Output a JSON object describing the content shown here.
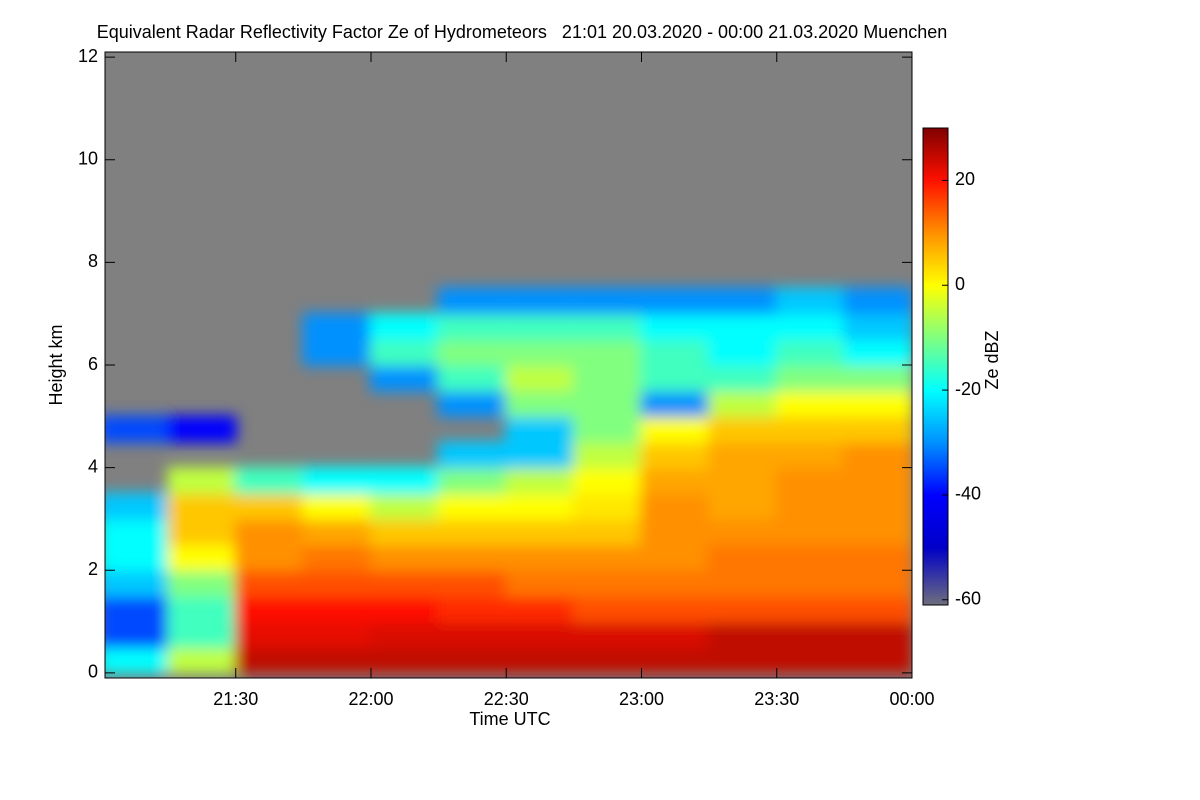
{
  "chart_data": {
    "type": "heatmap",
    "title": "Equivalent Radar Reflectivity Factor Ze of Hydrometeors   21:01 20.03.2020 - 00:00 21.03.2020 Muenchen",
    "x_label": "Time UTC",
    "y_label": "Height km",
    "colorbar_label": "Ze dBZ",
    "background_color": "#808080",
    "x": [
      21.125,
      21.375,
      21.625,
      21.875,
      22.125,
      22.375,
      22.625,
      22.875,
      23.125,
      23.375,
      23.625,
      23.875
    ],
    "y": [
      0.25,
      0.75,
      1.25,
      1.75,
      2.25,
      2.75,
      3.25,
      3.75,
      4.25,
      4.75,
      5.25,
      5.75,
      6.25,
      6.75,
      7.25,
      7.75
    ],
    "z": [
      [
        -20,
        -35,
        -35,
        -25,
        -20,
        -20,
        -25,
        null,
        null,
        -35,
        null,
        null,
        null,
        null,
        null,
        null
      ],
      [
        -5,
        -15,
        -15,
        -10,
        0,
        5,
        5,
        -5,
        null,
        -40,
        null,
        null,
        null,
        null,
        null,
        null
      ],
      [
        25,
        22,
        20,
        15,
        10,
        10,
        5,
        -15,
        null,
        null,
        null,
        null,
        null,
        null,
        null,
        null
      ],
      [
        25,
        22,
        20,
        15,
        12,
        8,
        0,
        -20,
        null,
        null,
        null,
        null,
        -30,
        -30,
        null,
        null
      ],
      [
        25,
        23,
        20,
        15,
        10,
        5,
        -5,
        -20,
        null,
        null,
        null,
        -30,
        -15,
        -20,
        null,
        null
      ],
      [
        25,
        23,
        18,
        15,
        10,
        5,
        0,
        -10,
        -25,
        null,
        -30,
        -15,
        -10,
        -15,
        -30,
        null
      ],
      [
        25,
        23,
        18,
        12,
        10,
        5,
        0,
        -5,
        -25,
        -25,
        -10,
        -5,
        -10,
        -15,
        -30,
        null
      ],
      [
        25,
        23,
        15,
        12,
        10,
        5,
        2,
        0,
        -5,
        -10,
        -10,
        -10,
        -10,
        -15,
        -30,
        null
      ],
      [
        25,
        23,
        15,
        12,
        10,
        10,
        10,
        8,
        5,
        0,
        -30,
        -15,
        -15,
        -20,
        -30,
        null
      ],
      [
        25,
        25,
        15,
        12,
        12,
        10,
        8,
        8,
        8,
        5,
        -5,
        -15,
        -20,
        -20,
        -30,
        null
      ],
      [
        25,
        25,
        15,
        12,
        12,
        10,
        10,
        10,
        8,
        5,
        0,
        -10,
        -15,
        -20,
        -25,
        null
      ],
      [
        25,
        25,
        15,
        12,
        12,
        10,
        10,
        10,
        10,
        5,
        0,
        -10,
        -20,
        -25,
        -30,
        null
      ]
    ],
    "xlim": [
      21.0167,
      24.0
    ],
    "xticks": [
      {
        "value": 21.5,
        "label": "21:30"
      },
      {
        "value": 22.0,
        "label": "22:00"
      },
      {
        "value": 22.5,
        "label": "22:30"
      },
      {
        "value": 23.0,
        "label": "23:00"
      },
      {
        "value": 23.5,
        "label": "23:30"
      },
      {
        "value": 24.0,
        "label": "00:00"
      }
    ],
    "ylim": [
      -0.1,
      12.1
    ],
    "yticks": [
      0,
      2,
      4,
      6,
      8,
      10,
      12
    ],
    "clim": [
      -61,
      30
    ],
    "cticks": [
      -60,
      -40,
      -20,
      0,
      20
    ]
  }
}
